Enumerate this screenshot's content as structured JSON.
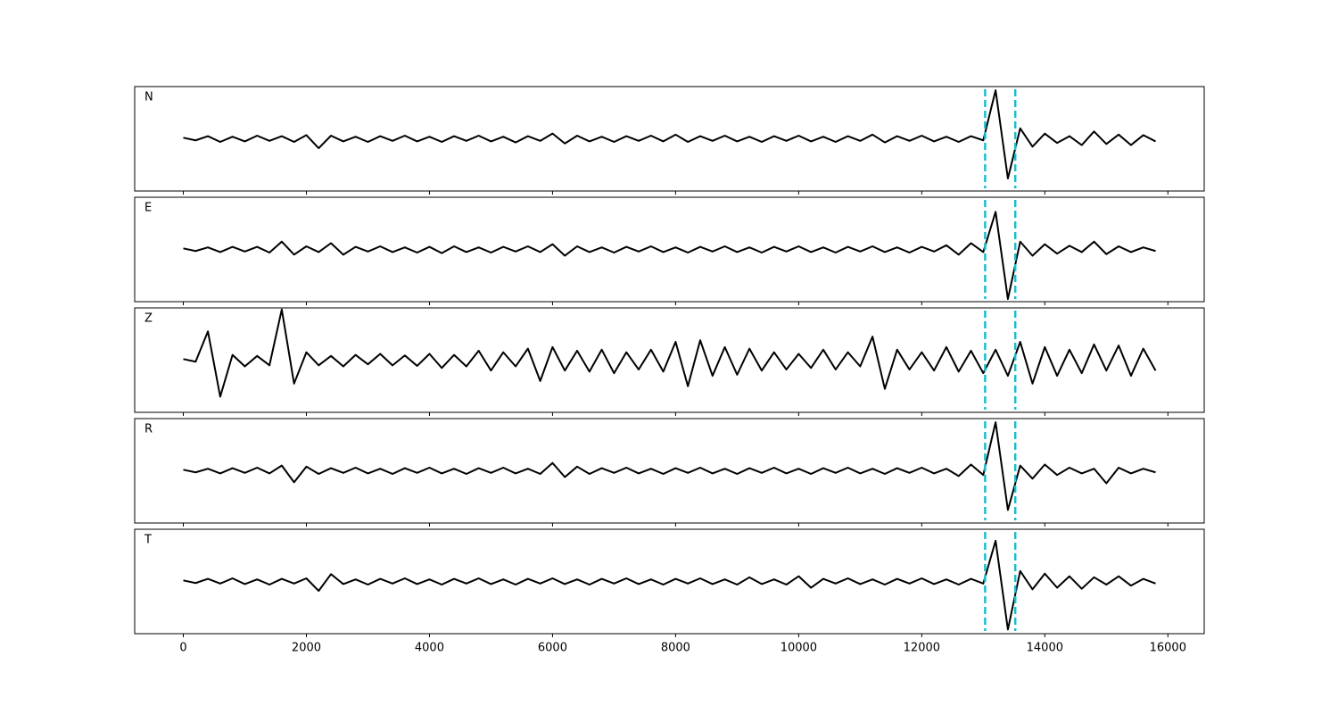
{
  "chart_data": {
    "type": "line",
    "x": [
      0,
      200,
      400,
      600,
      800,
      1000,
      1200,
      1400,
      1600,
      1800,
      2000,
      2200,
      2400,
      2600,
      2800,
      3000,
      3200,
      3400,
      3600,
      3800,
      4000,
      4200,
      4400,
      4600,
      4800,
      5000,
      5200,
      5400,
      5600,
      5800,
      6000,
      6200,
      6400,
      6600,
      6800,
      7000,
      7200,
      7400,
      7600,
      7800,
      8000,
      8200,
      8400,
      8600,
      8800,
      9000,
      9200,
      9400,
      9600,
      9800,
      10000,
      10200,
      10400,
      10600,
      10800,
      11000,
      11200,
      11400,
      11600,
      11800,
      12000,
      12200,
      12400,
      12600,
      12800,
      13000,
      13200,
      13400,
      13600,
      13800,
      14000,
      14200,
      14400,
      14600,
      14800,
      15000,
      15200,
      15400,
      15600,
      15800
    ],
    "series": [
      {
        "name": "N",
        "color": "#000000",
        "values": [
          0.02,
          -0.03,
          0.05,
          -0.06,
          0.04,
          -0.05,
          0.06,
          -0.04,
          0.05,
          -0.06,
          0.07,
          -0.18,
          0.06,
          -0.05,
          0.04,
          -0.06,
          0.05,
          -0.04,
          0.06,
          -0.05,
          0.04,
          -0.06,
          0.05,
          -0.04,
          0.06,
          -0.05,
          0.04,
          -0.07,
          0.05,
          -0.04,
          0.1,
          -0.09,
          0.06,
          -0.05,
          0.04,
          -0.06,
          0.05,
          -0.04,
          0.06,
          -0.05,
          0.08,
          -0.06,
          0.05,
          -0.04,
          0.06,
          -0.05,
          0.04,
          -0.06,
          0.05,
          -0.04,
          0.06,
          -0.05,
          0.04,
          -0.06,
          0.05,
          -0.04,
          0.08,
          -0.07,
          0.05,
          -0.04,
          0.06,
          -0.05,
          0.04,
          -0.06,
          0.05,
          -0.03,
          0.93,
          -0.76,
          0.2,
          -0.15,
          0.1,
          -0.08,
          0.05,
          -0.12,
          0.14,
          -0.1,
          0.08,
          -0.12,
          0.07,
          -0.05
        ]
      },
      {
        "name": "E",
        "color": "#000000",
        "values": [
          0.02,
          -0.03,
          0.04,
          -0.05,
          0.05,
          -0.04,
          0.05,
          -0.06,
          0.15,
          -0.1,
          0.06,
          -0.05,
          0.12,
          -0.1,
          0.05,
          -0.04,
          0.06,
          -0.05,
          0.04,
          -0.06,
          0.05,
          -0.07,
          0.06,
          -0.05,
          0.04,
          -0.06,
          0.05,
          -0.04,
          0.06,
          -0.05,
          0.1,
          -0.12,
          0.06,
          -0.05,
          0.04,
          -0.06,
          0.05,
          -0.04,
          0.06,
          -0.05,
          0.04,
          -0.06,
          0.05,
          -0.04,
          0.06,
          -0.05,
          0.04,
          -0.06,
          0.05,
          -0.04,
          0.06,
          -0.05,
          0.04,
          -0.06,
          0.05,
          -0.04,
          0.06,
          -0.05,
          0.04,
          -0.06,
          0.05,
          -0.04,
          0.08,
          -0.1,
          0.12,
          -0.05,
          0.72,
          -0.95,
          0.15,
          -0.12,
          0.1,
          -0.08,
          0.07,
          -0.05,
          0.15,
          -0.09,
          0.06,
          -0.05,
          0.04,
          -0.03
        ]
      },
      {
        "name": "Z",
        "color": "#000000",
        "values": [
          0.02,
          -0.03,
          0.55,
          -0.7,
          0.1,
          -0.12,
          0.08,
          -0.1,
          0.97,
          -0.45,
          0.15,
          -0.1,
          0.08,
          -0.12,
          0.1,
          -0.08,
          0.12,
          -0.1,
          0.09,
          -0.11,
          0.12,
          -0.15,
          0.1,
          -0.12,
          0.18,
          -0.2,
          0.15,
          -0.12,
          0.22,
          -0.4,
          0.25,
          -0.2,
          0.18,
          -0.22,
          0.2,
          -0.25,
          0.15,
          -0.18,
          0.2,
          -0.22,
          0.35,
          -0.5,
          0.38,
          -0.3,
          0.25,
          -0.28,
          0.22,
          -0.2,
          0.15,
          -0.18,
          0.12,
          -0.15,
          0.2,
          -0.18,
          0.15,
          -0.12,
          0.45,
          -0.55,
          0.2,
          -0.18,
          0.15,
          -0.2,
          0.25,
          -0.22,
          0.18,
          -0.25,
          0.2,
          -0.3,
          0.35,
          -0.45,
          0.25,
          -0.3,
          0.2,
          -0.25,
          0.3,
          -0.2,
          0.28,
          -0.3,
          0.22,
          -0.2
        ]
      },
      {
        "name": "R",
        "color": "#000000",
        "values": [
          0.02,
          -0.03,
          0.04,
          -0.05,
          0.05,
          -0.04,
          0.06,
          -0.05,
          0.1,
          -0.22,
          0.08,
          -0.06,
          0.05,
          -0.04,
          0.06,
          -0.05,
          0.04,
          -0.06,
          0.05,
          -0.04,
          0.06,
          -0.05,
          0.04,
          -0.06,
          0.05,
          -0.04,
          0.06,
          -0.05,
          0.04,
          -0.06,
          0.15,
          -0.12,
          0.08,
          -0.06,
          0.05,
          -0.04,
          0.06,
          -0.05,
          0.04,
          -0.06,
          0.05,
          -0.04,
          0.06,
          -0.05,
          0.04,
          -0.06,
          0.05,
          -0.04,
          0.06,
          -0.05,
          0.04,
          -0.06,
          0.05,
          -0.04,
          0.06,
          -0.05,
          0.04,
          -0.06,
          0.05,
          -0.04,
          0.06,
          -0.05,
          0.04,
          -0.1,
          0.12,
          -0.08,
          0.93,
          -0.75,
          0.1,
          -0.15,
          0.12,
          -0.08,
          0.06,
          -0.05,
          0.04,
          -0.24,
          0.06,
          -0.05,
          0.04,
          -0.03
        ]
      },
      {
        "name": "T",
        "color": "#000000",
        "values": [
          0.02,
          -0.03,
          0.05,
          -0.04,
          0.06,
          -0.05,
          0.04,
          -0.06,
          0.05,
          -0.04,
          0.06,
          -0.18,
          0.14,
          -0.05,
          0.04,
          -0.06,
          0.05,
          -0.04,
          0.06,
          -0.05,
          0.04,
          -0.06,
          0.05,
          -0.04,
          0.06,
          -0.05,
          0.04,
          -0.06,
          0.05,
          -0.04,
          0.06,
          -0.05,
          0.04,
          -0.06,
          0.05,
          -0.04,
          0.06,
          -0.05,
          0.04,
          -0.06,
          0.05,
          -0.04,
          0.06,
          -0.05,
          0.04,
          -0.06,
          0.08,
          -0.05,
          0.04,
          -0.06,
          0.1,
          -0.12,
          0.05,
          -0.04,
          0.06,
          -0.05,
          0.04,
          -0.06,
          0.05,
          -0.04,
          0.06,
          -0.05,
          0.04,
          -0.06,
          0.05,
          -0.04,
          0.78,
          -0.92,
          0.2,
          -0.15,
          0.15,
          -0.12,
          0.1,
          -0.14,
          0.08,
          -0.06,
          0.1,
          -0.08,
          0.05,
          -0.04
        ]
      }
    ],
    "xlim": [
      -790,
      16590
    ],
    "xticks": [
      0,
      2000,
      4000,
      6000,
      8000,
      10000,
      12000,
      14000,
      16000
    ],
    "ylim": [
      -1,
      1
    ],
    "vlines": {
      "values": [
        13030,
        13520
      ],
      "color": "#17becf"
    }
  }
}
